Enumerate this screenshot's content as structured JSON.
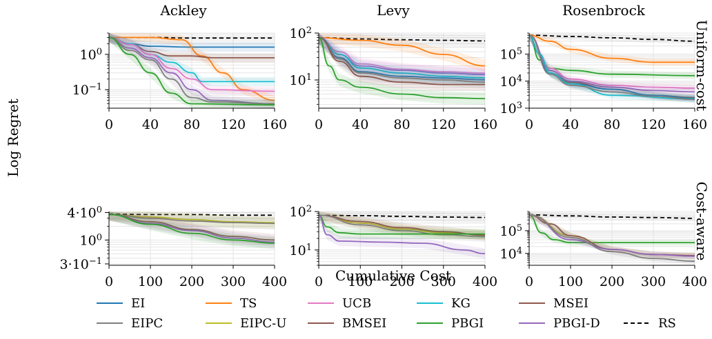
{
  "figure": {
    "xlabel": "Cumulative Cost",
    "ylabel": "Log Regret",
    "columns": [
      "Ackley",
      "Levy",
      "Rosenbrock"
    ],
    "rows": [
      "Uniform-cost",
      "Cost-aware"
    ]
  },
  "legend": [
    {
      "name": "EI",
      "color": "#1f77b4",
      "dash": false
    },
    {
      "name": "TS",
      "color": "#ff7f0e",
      "dash": false
    },
    {
      "name": "UCB",
      "color": "#e377c2",
      "dash": false
    },
    {
      "name": "KG",
      "color": "#17becf",
      "dash": false
    },
    {
      "name": "MSEI",
      "color": "#8c564b",
      "dash": false
    },
    {
      "name": "EIPC",
      "color": "#7f7f7f",
      "dash": false
    },
    {
      "name": "EIPC-U",
      "color": "#bcbd22",
      "dash": false
    },
    {
      "name": "BMSEI",
      "color": "#8c564b",
      "dash": false
    },
    {
      "name": "PBGI",
      "color": "#2ca02c",
      "dash": false
    },
    {
      "name": "PBGI-D",
      "color": "#9467bd",
      "dash": false
    },
    {
      "name": "RS",
      "color": "#000000",
      "dash": true
    }
  ],
  "chart_data": [
    {
      "type": "line",
      "row": "Uniform-cost",
      "title": "Ackley",
      "xlim": [
        0,
        160
      ],
      "ylim": [
        0.03,
        4
      ],
      "log_y": true,
      "xticks": [
        0,
        40,
        80,
        120,
        160
      ],
      "xtick_labels": [
        "0",
        "40",
        "80",
        "120",
        "160"
      ],
      "yticks": [
        1,
        0.1
      ],
      "ytick_labels": [
        "10^0",
        "10^-1"
      ],
      "series": [
        {
          "name": "RS",
          "x": [
            0,
            40,
            80,
            120,
            160
          ],
          "y": [
            3.0,
            3.0,
            2.9,
            2.9,
            2.9
          ]
        },
        {
          "name": "EI",
          "x": [
            0,
            20,
            40,
            80,
            120,
            160
          ],
          "y": [
            3.0,
            2.0,
            1.7,
            1.6,
            1.6,
            1.6
          ]
        },
        {
          "name": "TS",
          "x": [
            0,
            40,
            70,
            90,
            110,
            130,
            160
          ],
          "y": [
            3.0,
            3.0,
            2.6,
            0.9,
            0.3,
            0.1,
            0.05
          ]
        },
        {
          "name": "MSEI",
          "x": [
            0,
            20,
            40,
            60,
            80,
            100,
            160
          ],
          "y": [
            3.0,
            2.0,
            1.2,
            0.9,
            0.9,
            0.8,
            0.8
          ]
        },
        {
          "name": "KG",
          "x": [
            0,
            20,
            40,
            60,
            80,
            90,
            160
          ],
          "y": [
            3.0,
            2.0,
            1.0,
            0.6,
            0.3,
            0.17,
            0.17
          ]
        },
        {
          "name": "UCB",
          "x": [
            0,
            20,
            40,
            60,
            80,
            100,
            160
          ],
          "y": [
            3.0,
            1.9,
            1.0,
            0.4,
            0.2,
            0.1,
            0.09
          ]
        },
        {
          "name": "PBGI-D",
          "x": [
            0,
            20,
            40,
            60,
            80,
            100,
            160
          ],
          "y": [
            3.0,
            1.5,
            0.8,
            0.3,
            0.1,
            0.05,
            0.04
          ]
        },
        {
          "name": "EIPC",
          "x": [
            0,
            20,
            40,
            60,
            80,
            100,
            160
          ],
          "y": [
            3.0,
            1.3,
            0.7,
            0.2,
            0.06,
            0.045,
            0.04
          ]
        },
        {
          "name": "PBGI",
          "x": [
            0,
            20,
            40,
            60,
            80,
            160
          ],
          "y": [
            3.0,
            1.0,
            0.3,
            0.08,
            0.04,
            0.037
          ]
        }
      ]
    },
    {
      "type": "line",
      "row": "Uniform-cost",
      "title": "Levy",
      "xlim": [
        0,
        160
      ],
      "ylim": [
        2.5,
        100
      ],
      "log_y": true,
      "xticks": [
        0,
        40,
        80,
        120,
        160
      ],
      "xtick_labels": [
        "0",
        "40",
        "80",
        "120",
        "160"
      ],
      "yticks": [
        100,
        10
      ],
      "ytick_labels": [
        "10^2",
        "10^1"
      ],
      "series": [
        {
          "name": "RS",
          "x": [
            0,
            40,
            80,
            120,
            160
          ],
          "y": [
            80,
            75,
            72,
            70,
            68
          ]
        },
        {
          "name": "TS",
          "x": [
            0,
            40,
            80,
            120,
            160
          ],
          "y": [
            80,
            70,
            55,
            35,
            20
          ]
        },
        {
          "name": "UCB",
          "x": [
            0,
            20,
            40,
            80,
            120,
            160
          ],
          "y": [
            80,
            40,
            22,
            17,
            15,
            14
          ]
        },
        {
          "name": "PBGI-D",
          "x": [
            0,
            20,
            40,
            80,
            120,
            160
          ],
          "y": [
            80,
            35,
            20,
            16,
            14,
            13
          ]
        },
        {
          "name": "KG",
          "x": [
            0,
            20,
            40,
            80,
            120,
            160
          ],
          "y": [
            80,
            35,
            18,
            14,
            12,
            11
          ]
        },
        {
          "name": "EI",
          "x": [
            0,
            20,
            40,
            80,
            120,
            160
          ],
          "y": [
            80,
            30,
            15,
            12,
            11,
            10
          ]
        },
        {
          "name": "EIPC",
          "x": [
            0,
            20,
            40,
            80,
            120,
            160
          ],
          "y": [
            80,
            28,
            14,
            11,
            10,
            9
          ]
        },
        {
          "name": "MSEI",
          "x": [
            0,
            20,
            40,
            80,
            120,
            160
          ],
          "y": [
            80,
            25,
            12,
            9,
            8,
            8
          ]
        },
        {
          "name": "PBGI",
          "x": [
            0,
            10,
            20,
            40,
            80,
            120,
            160
          ],
          "y": [
            80,
            20,
            10,
            7,
            5,
            4.2,
            4.0
          ]
        }
      ]
    },
    {
      "type": "line",
      "row": "Uniform-cost",
      "title": "Rosenbrock",
      "xlim": [
        0,
        160
      ],
      "ylim": [
        1000,
        600000
      ],
      "log_y": true,
      "xticks": [
        0,
        40,
        80,
        120,
        160
      ],
      "xtick_labels": [
        "0",
        "40",
        "80",
        "120",
        "160"
      ],
      "yticks": [
        100000,
        10000,
        1000
      ],
      "ytick_labels": [
        "10^5",
        "10^4",
        "10^3"
      ],
      "series": [
        {
          "name": "RS",
          "x": [
            0,
            40,
            80,
            120,
            160
          ],
          "y": [
            500000,
            450000,
            400000,
            350000,
            300000
          ]
        },
        {
          "name": "TS",
          "x": [
            0,
            20,
            40,
            80,
            120,
            160
          ],
          "y": [
            500000,
            300000,
            150000,
            70000,
            50000,
            50000
          ]
        },
        {
          "name": "PBGI",
          "x": [
            0,
            10,
            20,
            40,
            80,
            160
          ],
          "y": [
            500000,
            60000,
            30000,
            25000,
            18000,
            16000
          ]
        },
        {
          "name": "UCB",
          "x": [
            0,
            20,
            40,
            80,
            120,
            160
          ],
          "y": [
            500000,
            30000,
            12000,
            7000,
            6000,
            5500
          ]
        },
        {
          "name": "PBGI-D",
          "x": [
            0,
            20,
            40,
            80,
            120,
            160
          ],
          "y": [
            500000,
            25000,
            10000,
            6000,
            4500,
            4000
          ]
        },
        {
          "name": "MSEI",
          "x": [
            0,
            20,
            40,
            80,
            120,
            160
          ],
          "y": [
            500000,
            20000,
            9000,
            5000,
            3000,
            2500
          ]
        },
        {
          "name": "EI",
          "x": [
            0,
            20,
            40,
            80,
            120,
            160
          ],
          "y": [
            500000,
            20000,
            8000,
            5000,
            3000,
            2300
          ]
        },
        {
          "name": "KG",
          "x": [
            0,
            10,
            20,
            40,
            80,
            160
          ],
          "y": [
            500000,
            100000,
            20000,
            8000,
            3000,
            2200
          ]
        },
        {
          "name": "EIPC",
          "x": [
            0,
            20,
            40,
            80,
            120,
            160
          ],
          "y": [
            500000,
            18000,
            7000,
            4000,
            2800,
            2100
          ]
        }
      ]
    },
    {
      "type": "line",
      "row": "Cost-aware",
      "title": "Ackley",
      "xlim": [
        0,
        400
      ],
      "ylim": [
        0.28,
        4.2
      ],
      "log_y": true,
      "xticks": [
        0,
        100,
        200,
        300,
        400
      ],
      "xtick_labels": [
        "0",
        "100",
        "200",
        "300",
        "400"
      ],
      "yticks": [
        4,
        1,
        0.3
      ],
      "ytick_labels": [
        "4·10^0",
        "10^0",
        "3·10^-1"
      ],
      "series": [
        {
          "name": "RS",
          "x": [
            0,
            100,
            200,
            300,
            400
          ],
          "y": [
            3.7,
            3.6,
            3.6,
            3.5,
            3.5
          ]
        },
        {
          "name": "EIPC-U",
          "x": [
            0,
            100,
            200,
            300,
            400
          ],
          "y": [
            3.6,
            3.2,
            2.8,
            2.5,
            2.4
          ]
        },
        {
          "name": "EIPC",
          "x": [
            0,
            100,
            200,
            300,
            400
          ],
          "y": [
            3.6,
            3.0,
            2.6,
            2.4,
            2.3
          ]
        },
        {
          "name": "BMSEI",
          "x": [
            0,
            100,
            200,
            300,
            400
          ],
          "y": [
            3.6,
            2.5,
            1.7,
            1.2,
            1.0
          ]
        },
        {
          "name": "PBGI-D",
          "x": [
            0,
            100,
            200,
            300,
            400
          ],
          "y": [
            3.6,
            2.3,
            1.6,
            1.1,
            0.9
          ]
        },
        {
          "name": "PBGI",
          "x": [
            0,
            100,
            200,
            300,
            400
          ],
          "y": [
            3.6,
            2.2,
            1.4,
            1.0,
            0.85
          ]
        }
      ]
    },
    {
      "type": "line",
      "row": "Cost-aware",
      "title": "Levy",
      "xlim": [
        0,
        400
      ],
      "ylim": [
        4,
        100
      ],
      "log_y": true,
      "xticks": [
        0,
        100,
        200,
        300,
        400
      ],
      "xtick_labels": [
        "0",
        "100",
        "200",
        "300",
        "400"
      ],
      "yticks": [
        100,
        10
      ],
      "ytick_labels": [
        "10^2",
        "10^1"
      ],
      "series": [
        {
          "name": "RS",
          "x": [
            0,
            100,
            200,
            300,
            400
          ],
          "y": [
            80,
            78,
            75,
            72,
            70
          ]
        },
        {
          "name": "EIPC-U",
          "x": [
            0,
            100,
            200,
            300,
            400
          ],
          "y": [
            80,
            50,
            35,
            28,
            25
          ]
        },
        {
          "name": "BMSEI",
          "x": [
            0,
            100,
            200,
            300,
            400
          ],
          "y": [
            80,
            55,
            38,
            30,
            24
          ]
        },
        {
          "name": "EIPC",
          "x": [
            0,
            100,
            200,
            300,
            400
          ],
          "y": [
            80,
            45,
            32,
            25,
            22
          ]
        },
        {
          "name": "PBGI",
          "x": [
            0,
            20,
            50,
            100,
            200,
            400
          ],
          "y": [
            80,
            40,
            28,
            26,
            26,
            26
          ]
        },
        {
          "name": "PBGI-D",
          "x": [
            0,
            20,
            50,
            150,
            250,
            350,
            400
          ],
          "y": [
            80,
            25,
            17,
            16,
            15,
            10,
            8
          ]
        }
      ]
    },
    {
      "type": "line",
      "row": "Cost-aware",
      "title": "Rosenbrock",
      "xlim": [
        0,
        400
      ],
      "ylim": [
        3000,
        700000
      ],
      "log_y": true,
      "xticks": [
        0,
        100,
        200,
        300,
        400
      ],
      "xtick_labels": [
        "0",
        "100",
        "200",
        "300",
        "400"
      ],
      "yticks": [
        100000,
        10000
      ],
      "ytick_labels": [
        "10^5",
        "10^4"
      ],
      "series": [
        {
          "name": "RS",
          "x": [
            0,
            100,
            200,
            300,
            400
          ],
          "y": [
            500000,
            450000,
            400000,
            380000,
            350000
          ]
        },
        {
          "name": "PBGI",
          "x": [
            0,
            30,
            60,
            100,
            200,
            400
          ],
          "y": [
            500000,
            80000,
            40000,
            30000,
            30000,
            30000
          ]
        },
        {
          "name": "EIPC-U",
          "x": [
            0,
            100,
            200,
            300,
            400
          ],
          "y": [
            500000,
            60000,
            15000,
            9000,
            8000
          ]
        },
        {
          "name": "BMSEI",
          "x": [
            0,
            50,
            100,
            200,
            300,
            400
          ],
          "y": [
            500000,
            200000,
            60000,
            15000,
            9000,
            8000
          ]
        },
        {
          "name": "PBGI-D",
          "x": [
            0,
            100,
            200,
            300,
            400
          ],
          "y": [
            500000,
            40000,
            15000,
            9000,
            7500
          ]
        },
        {
          "name": "EIPC",
          "x": [
            0,
            100,
            200,
            300,
            400
          ],
          "y": [
            500000,
            50000,
            12000,
            6000,
            4500
          ]
        }
      ]
    }
  ]
}
